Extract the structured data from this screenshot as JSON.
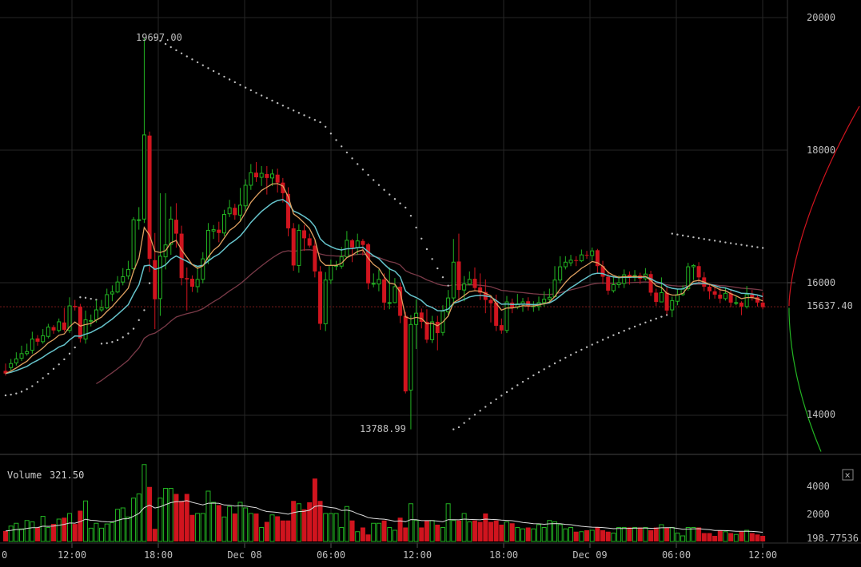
{
  "chart_data": [
    {
      "type": "candlestick",
      "title": "",
      "ylim": [
        13400,
        20300
      ],
      "y_ticks": [
        "20000",
        "18000",
        "16000",
        "14000"
      ],
      "last_price_label": "15637.40",
      "high_annotation": "19697.00",
      "low_annotation": "13788.99",
      "high_value": 19697,
      "low_value": 13788.99,
      "grid": true,
      "colors": {
        "up": "#22b422",
        "down": "#d0141e",
        "ema_fast": "#e0a060",
        "ema_slow": "#66c4cc",
        "sma_long": "#7a3a48",
        "psar": "#bbbbbb",
        "depth_bid": "#22b422",
        "depth_ask": "#d0141e"
      },
      "candles": [
        [
          14670,
          14630,
          14780,
          14600
        ],
        [
          14720,
          14780,
          14850,
          14680
        ],
        [
          14790,
          14850,
          14950,
          14750
        ],
        [
          14860,
          14930,
          15050,
          14820
        ],
        [
          14930,
          14960,
          15080,
          14900
        ],
        [
          14980,
          15150,
          15260,
          14930
        ],
        [
          15160,
          15110,
          15210,
          15050
        ],
        [
          15110,
          15200,
          15300,
          15080
        ],
        [
          15190,
          15330,
          15380,
          15160
        ],
        [
          15330,
          15280,
          15360,
          15230
        ],
        [
          15280,
          15410,
          15460,
          15250
        ],
        [
          15400,
          15290,
          15620,
          15260
        ],
        [
          15280,
          15650,
          15780,
          15240
        ],
        [
          15650,
          15630,
          15740,
          15580
        ],
        [
          15640,
          15160,
          15680,
          15100
        ],
        [
          15150,
          15440,
          15580,
          15080
        ],
        [
          15430,
          15430,
          15520,
          15340
        ],
        [
          15440,
          15590,
          15740,
          15400
        ],
        [
          15590,
          15620,
          15740,
          15560
        ],
        [
          15620,
          15820,
          15910,
          15600
        ],
        [
          15830,
          15860,
          15960,
          15720
        ],
        [
          15860,
          16010,
          16100,
          15840
        ],
        [
          16010,
          16090,
          16220,
          15960
        ],
        [
          16100,
          16200,
          16330,
          16050
        ],
        [
          16210,
          16950,
          16990,
          16150
        ],
        [
          16950,
          16950,
          17140,
          16800
        ],
        [
          16960,
          18230,
          19697,
          16900
        ],
        [
          18220,
          16360,
          18280,
          16160
        ],
        [
          16340,
          15750,
          16750,
          15300
        ],
        [
          15760,
          16400,
          17350,
          15500
        ],
        [
          16390,
          16570,
          17350,
          16200
        ],
        [
          16580,
          16960,
          17150,
          16420
        ],
        [
          16950,
          16740,
          17200,
          16530
        ],
        [
          16740,
          16070,
          16860,
          15960
        ],
        [
          16070,
          16050,
          16230,
          15580
        ],
        [
          16060,
          15940,
          16110,
          15860
        ],
        [
          15940,
          16050,
          16250,
          15850
        ],
        [
          16050,
          16360,
          16460,
          15990
        ],
        [
          16350,
          16790,
          16900,
          16280
        ],
        [
          16780,
          16800,
          16870,
          16660
        ],
        [
          16800,
          16750,
          16920,
          16610
        ],
        [
          16750,
          17030,
          17100,
          16700
        ],
        [
          17040,
          17130,
          17250,
          16990
        ],
        [
          17130,
          17020,
          17190,
          16950
        ],
        [
          17020,
          17170,
          17430,
          16920
        ],
        [
          17160,
          17470,
          17560,
          17080
        ],
        [
          17470,
          17660,
          17790,
          17400
        ],
        [
          17660,
          17590,
          17820,
          17520
        ],
        [
          17590,
          17650,
          17760,
          17460
        ],
        [
          17640,
          17580,
          17760,
          17330
        ],
        [
          17580,
          17640,
          17710,
          17460
        ],
        [
          17630,
          17510,
          17720,
          17360
        ],
        [
          17510,
          17350,
          17580,
          17210
        ],
        [
          17340,
          16820,
          17440,
          16700
        ],
        [
          16820,
          16260,
          16900,
          16180
        ],
        [
          16260,
          16790,
          16880,
          16150
        ],
        [
          16790,
          16670,
          16870,
          16480
        ],
        [
          16670,
          16560,
          16740,
          16530
        ],
        [
          16560,
          16170,
          16640,
          16080
        ],
        [
          16170,
          15380,
          16250,
          15290
        ],
        [
          15380,
          16040,
          16160,
          15270
        ],
        [
          16040,
          16260,
          16350,
          15980
        ],
        [
          16250,
          16260,
          16330,
          16190
        ],
        [
          16250,
          16390,
          16540,
          16210
        ],
        [
          16390,
          16640,
          16780,
          16390
        ],
        [
          16640,
          16530,
          16660,
          16310
        ],
        [
          16530,
          16630,
          16740,
          16420
        ],
        [
          16630,
          16570,
          16660,
          16410
        ],
        [
          16580,
          15990,
          16600,
          15900
        ],
        [
          15990,
          15990,
          16140,
          15930
        ],
        [
          15980,
          16050,
          16200,
          15870
        ],
        [
          16050,
          15700,
          16140,
          15590
        ],
        [
          15690,
          15700,
          16230,
          15600
        ],
        [
          15700,
          15940,
          16070,
          15690
        ],
        [
          15940,
          15500,
          16000,
          15390
        ],
        [
          15500,
          14360,
          15560,
          14330
        ],
        [
          14380,
          15370,
          15510,
          13788
        ],
        [
          15370,
          15540,
          15750,
          15000
        ],
        [
          15550,
          15410,
          15610,
          15310
        ],
        [
          15410,
          15140,
          15600,
          15090
        ],
        [
          15140,
          15410,
          15500,
          15090
        ],
        [
          15410,
          15240,
          15500,
          14980
        ],
        [
          15250,
          15570,
          15660,
          15200
        ],
        [
          15560,
          15770,
          15890,
          15500
        ],
        [
          15770,
          16310,
          16660,
          15660
        ],
        [
          16320,
          15890,
          16740,
          15700
        ],
        [
          15890,
          15980,
          16100,
          15720
        ],
        [
          15980,
          16050,
          16170,
          15960
        ],
        [
          16060,
          15920,
          16230,
          15880
        ],
        [
          15930,
          15850,
          16140,
          15740
        ],
        [
          15860,
          15740,
          16050,
          15540
        ],
        [
          15740,
          15690,
          15780,
          15400
        ],
        [
          15700,
          15350,
          15820,
          15270
        ],
        [
          15360,
          15280,
          15460,
          15230
        ],
        [
          15280,
          15710,
          15800,
          15240
        ],
        [
          15700,
          15620,
          15760,
          15540
        ],
        [
          15630,
          15680,
          15830,
          15600
        ],
        [
          15680,
          15710,
          15770,
          15560
        ],
        [
          15720,
          15640,
          15780,
          15580
        ],
        [
          15640,
          15650,
          15720,
          15560
        ],
        [
          15640,
          15700,
          15790,
          15580
        ],
        [
          15700,
          15750,
          15870,
          15640
        ],
        [
          15750,
          15780,
          15910,
          15700
        ],
        [
          15790,
          16040,
          16250,
          15780
        ],
        [
          16040,
          16240,
          16400,
          15990
        ],
        [
          16240,
          16310,
          16400,
          16200
        ],
        [
          16300,
          16340,
          16420,
          16250
        ],
        [
          16340,
          16330,
          16400,
          16250
        ],
        [
          16330,
          16420,
          16500,
          16310
        ],
        [
          16420,
          16410,
          16480,
          16360
        ],
        [
          16410,
          16480,
          16530,
          16330
        ],
        [
          16490,
          16250,
          16510,
          16150
        ],
        [
          16250,
          16090,
          16330,
          15980
        ],
        [
          16090,
          15880,
          16180,
          15820
        ],
        [
          15880,
          15970,
          16090,
          15850
        ],
        [
          15970,
          16000,
          16110,
          15920
        ],
        [
          15990,
          16120,
          16200,
          15920
        ],
        [
          16120,
          16080,
          16170,
          15970
        ],
        [
          16080,
          16110,
          16190,
          16020
        ],
        [
          16110,
          16060,
          16150,
          15980
        ],
        [
          16060,
          16130,
          16220,
          16030
        ],
        [
          16130,
          15850,
          16180,
          15800
        ],
        [
          15850,
          15710,
          15910,
          15650
        ],
        [
          15710,
          15850,
          16080,
          15720
        ],
        [
          15850,
          15580,
          15930,
          15520
        ],
        [
          15590,
          15730,
          15790,
          15480
        ],
        [
          15720,
          15820,
          15900,
          15660
        ],
        [
          15820,
          15910,
          15960,
          15800
        ],
        [
          15910,
          16240,
          16300,
          15880
        ],
        [
          16240,
          16260,
          16280,
          16040
        ],
        [
          16250,
          16080,
          16310,
          15980
        ],
        [
          16080,
          15940,
          16160,
          15870
        ],
        [
          15940,
          15870,
          15980,
          15750
        ],
        [
          15870,
          15820,
          15950,
          15760
        ],
        [
          15820,
          15760,
          15950,
          15690
        ],
        [
          15760,
          15840,
          15930,
          15730
        ],
        [
          15840,
          15700,
          15890,
          15630
        ],
        [
          15700,
          15700,
          15790,
          15660
        ],
        [
          15700,
          15640,
          15720,
          15510
        ],
        [
          15640,
          15820,
          15950,
          15610
        ],
        [
          15820,
          15780,
          15890,
          15730
        ],
        [
          15780,
          15700,
          15820,
          15640
        ],
        [
          15700,
          15630,
          15850,
          15600
        ]
      ],
      "volume": {
        "label": "Volume",
        "current": "321.50",
        "last_label": "198.77536",
        "y_ticks": [
          "4000",
          "2000"
        ],
        "ylim": [
          0,
          5600
        ],
        "bars": [
          750,
          1100,
          1300,
          900,
          1500,
          1400,
          1000,
          1800,
          1000,
          1250,
          1600,
          1700,
          2000,
          1250,
          2200,
          2900,
          950,
          1300,
          950,
          1250,
          1350,
          2300,
          2400,
          1750,
          3100,
          3400,
          5500,
          3900,
          900,
          3100,
          3800,
          3800,
          3400,
          2900,
          3400,
          1900,
          2000,
          2000,
          3600,
          2800,
          2600,
          1750,
          2500,
          2000,
          2800,
          2400,
          2000,
          2000,
          1000,
          1400,
          1900,
          1800,
          1500,
          1500,
          2900,
          2700,
          2300,
          2800,
          4500,
          2900,
          2000,
          2000,
          2000,
          1000,
          2500,
          1500,
          700,
          1000,
          500,
          1300,
          1300,
          1500,
          1000,
          800,
          1700,
          1000,
          2700,
          1500,
          1000,
          1500,
          1500,
          1200,
          1000,
          2700,
          1500,
          1500,
          2000,
          1400,
          1500,
          1400,
          2000,
          1400,
          1500,
          1200,
          1400,
          1300,
          1000,
          900,
          1000,
          900,
          1200,
          1000,
          1500,
          1400,
          1200,
          900,
          1000,
          700,
          700,
          800,
          800,
          1000,
          800,
          700,
          600,
          1000,
          1000,
          1000,
          1000,
          1000,
          1000,
          800,
          1000,
          1200,
          1000,
          1000,
          600,
          400,
          1000,
          1000,
          1000,
          600,
          600,
          400,
          800,
          700,
          600,
          500,
          700,
          800,
          600,
          500,
          400
        ],
        "up_color": "#22b422",
        "down_color": "#d0141e"
      },
      "x_ticks": [
        "0",
        "12:00",
        "18:00",
        "Dec 08",
        "06:00",
        "12:00",
        "18:00",
        "Dec 09",
        "06:00",
        "12:00"
      ],
      "close_button": "×"
    }
  ]
}
